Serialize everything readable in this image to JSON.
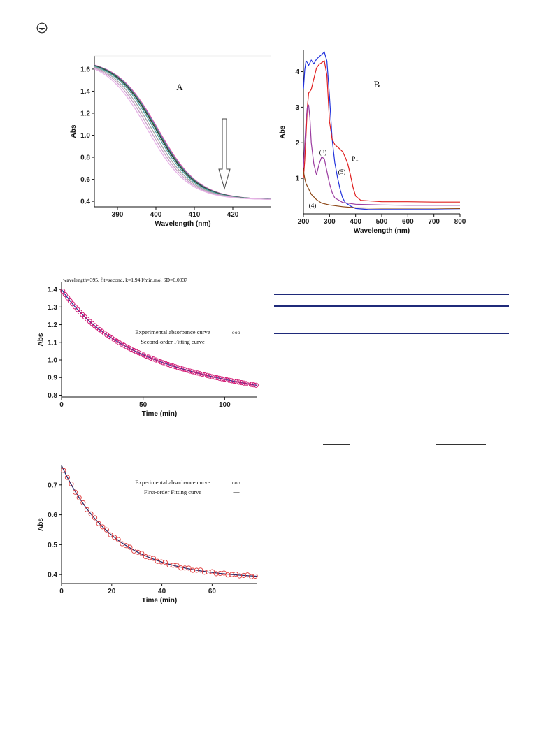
{
  "chart_data": [
    {
      "id": "A",
      "type": "line",
      "panel_label": "A",
      "xlabel": "Wavelength (nm)",
      "ylabel": "Abs",
      "xlim": [
        384,
        430
      ],
      "ylim": [
        0.35,
        1.72
      ],
      "xticks": [
        390,
        400,
        410,
        420
      ],
      "yticks": [
        0.4,
        0.6,
        0.8,
        1.0,
        1.2,
        1.4,
        1.6
      ],
      "ytick_labels": [
        "0.4",
        "0.6",
        "0.8",
        "1.0",
        "1.2",
        "1.4",
        "1.6"
      ],
      "annotation": "arrow-down",
      "series": [
        {
          "color": "#e05ba6",
          "params": [
            1.69,
            0.415,
            400.6,
            5.3
          ]
        },
        {
          "color": "#7b6fc0",
          "params": [
            1.69,
            0.415,
            400.4,
            5.3
          ]
        },
        {
          "color": "#2e8b57",
          "params": [
            1.69,
            0.415,
            400.2,
            5.3
          ]
        },
        {
          "color": "#3a3a3a",
          "params": [
            1.69,
            0.415,
            400.0,
            5.3
          ]
        },
        {
          "color": "#4aa0a0",
          "params": [
            1.69,
            0.415,
            399.6,
            5.3
          ]
        },
        {
          "color": "#a6a6a6",
          "params": [
            1.69,
            0.415,
            399.0,
            5.3
          ]
        },
        {
          "color": "#c9a0c9",
          "params": [
            1.69,
            0.415,
            398.4,
            5.3
          ]
        },
        {
          "color": "#e6b3e6",
          "params": [
            1.69,
            0.415,
            397.8,
            5.3
          ]
        }
      ]
    },
    {
      "id": "B",
      "type": "line",
      "panel_label": "B",
      "xlabel": "Wavelength (nm)",
      "ylabel": "Abs",
      "xlim": [
        200,
        800
      ],
      "ylim": [
        0,
        4.6
      ],
      "xticks": [
        200,
        300,
        400,
        500,
        600,
        700,
        800
      ],
      "yticks": [
        1,
        2,
        3,
        4
      ],
      "curve_labels": [
        "(3)",
        "(5)",
        "(4)",
        "P1"
      ],
      "series": [
        {
          "color": "#2233dd",
          "points": [
            [
              200,
              3.5
            ],
            [
              205,
              4.05
            ],
            [
              210,
              4.3
            ],
            [
              215,
              4.25
            ],
            [
              220,
              4.18
            ],
            [
              230,
              4.32
            ],
            [
              240,
              4.22
            ],
            [
              250,
              4.35
            ],
            [
              260,
              4.42
            ],
            [
              270,
              4.48
            ],
            [
              280,
              4.55
            ],
            [
              290,
              4.3
            ],
            [
              300,
              3.3
            ],
            [
              310,
              2.1
            ],
            [
              320,
              1.45
            ],
            [
              330,
              1.05
            ],
            [
              340,
              0.7
            ],
            [
              350,
              0.45
            ],
            [
              360,
              0.32
            ],
            [
              380,
              0.22
            ],
            [
              400,
              0.15
            ],
            [
              450,
              0.12
            ],
            [
              500,
              0.12
            ],
            [
              600,
              0.12
            ],
            [
              700,
              0.12
            ],
            [
              800,
              0.11
            ]
          ]
        },
        {
          "color": "#e02020",
          "points": [
            [
              200,
              1.0
            ],
            [
              205,
              1.5
            ],
            [
              210,
              2.2
            ],
            [
              215,
              3.0
            ],
            [
              220,
              3.4
            ],
            [
              230,
              3.5
            ],
            [
              240,
              3.8
            ],
            [
              250,
              4.1
            ],
            [
              260,
              4.2
            ],
            [
              270,
              4.25
            ],
            [
              280,
              4.3
            ],
            [
              290,
              3.9
            ],
            [
              300,
              2.6
            ],
            [
              310,
              2.1
            ],
            [
              320,
              1.95
            ],
            [
              340,
              1.82
            ],
            [
              350,
              1.75
            ],
            [
              360,
              1.6
            ],
            [
              370,
              1.4
            ],
            [
              380,
              1.1
            ],
            [
              390,
              0.75
            ],
            [
              400,
              0.5
            ],
            [
              420,
              0.38
            ],
            [
              500,
              0.34
            ],
            [
              600,
              0.34
            ],
            [
              700,
              0.33
            ],
            [
              800,
              0.33
            ]
          ]
        },
        {
          "color": "#9b3ca0",
          "points": [
            [
              200,
              1.3
            ],
            [
              210,
              2.6
            ],
            [
              215,
              3.0
            ],
            [
              220,
              3.05
            ],
            [
              225,
              2.7
            ],
            [
              230,
              2.0
            ],
            [
              240,
              1.4
            ],
            [
              250,
              1.1
            ],
            [
              260,
              1.4
            ],
            [
              270,
              1.6
            ],
            [
              280,
              1.55
            ],
            [
              290,
              1.2
            ],
            [
              300,
              0.85
            ],
            [
              310,
              0.6
            ],
            [
              320,
              0.45
            ],
            [
              350,
              0.32
            ],
            [
              400,
              0.27
            ],
            [
              500,
              0.25
            ],
            [
              600,
              0.24
            ],
            [
              700,
              0.24
            ],
            [
              800,
              0.24
            ]
          ]
        },
        {
          "color": "#8b4513",
          "points": [
            [
              200,
              1.2
            ],
            [
              205,
              1.0
            ],
            [
              210,
              0.85
            ],
            [
              220,
              0.7
            ],
            [
              230,
              0.55
            ],
            [
              250,
              0.4
            ],
            [
              270,
              0.3
            ],
            [
              300,
              0.25
            ],
            [
              350,
              0.2
            ],
            [
              400,
              0.17
            ],
            [
              500,
              0.16
            ],
            [
              600,
              0.16
            ],
            [
              700,
              0.16
            ],
            [
              800,
              0.15
            ]
          ]
        }
      ]
    },
    {
      "id": "second-order",
      "type": "scatter",
      "title": "wavelength=395, fit=second, k=1.94 l/min.mol SD=0.0037",
      "xlabel": "Time (min)",
      "ylabel": "Abs",
      "xlim": [
        0,
        120
      ],
      "ylim": [
        0.79,
        1.44
      ],
      "xticks": [
        0,
        50,
        100
      ],
      "yticks": [
        0.8,
        0.9,
        1.0,
        1.1,
        1.2,
        1.3,
        1.4
      ],
      "ytick_labels": [
        "0.8",
        "0.9",
        "1.0",
        "1.1",
        "1.2",
        "1.3",
        "1.4"
      ],
      "legend": [
        "Experimental absorbance curve",
        "Second-order Fitting curve"
      ],
      "legend_markers": [
        "ooo",
        "—"
      ],
      "model": {
        "kind": "second",
        "a0": 1.4,
        "ainf": 0.58,
        "k": 0.0165
      },
      "marker_color": "#d0106e",
      "fit_color": "#2a3ea0",
      "x_range": [
        0,
        120
      ],
      "n_points": 80
    },
    {
      "id": "first-order",
      "type": "scatter",
      "xlabel": "Time (min)",
      "ylabel": "Abs",
      "xlim": [
        0,
        78
      ],
      "ylim": [
        0.37,
        0.765
      ],
      "xticks": [
        0,
        20,
        40,
        60
      ],
      "yticks": [
        0.4,
        0.5,
        0.6,
        0.7
      ],
      "ytick_labels": [
        "0.4",
        "0.5",
        "0.6",
        "0.7"
      ],
      "legend": [
        "Experimental absorbance curve",
        "First-order Fitting curve"
      ],
      "legend_markers": [
        "ooo",
        "—"
      ],
      "model": {
        "kind": "first",
        "a0": 0.765,
        "ainf": 0.385,
        "k": 0.0475
      },
      "marker_color": "#e03a3a",
      "fit_color": "#2b2b6a",
      "x_range": [
        0,
        78
      ],
      "n_points": 50
    }
  ]
}
